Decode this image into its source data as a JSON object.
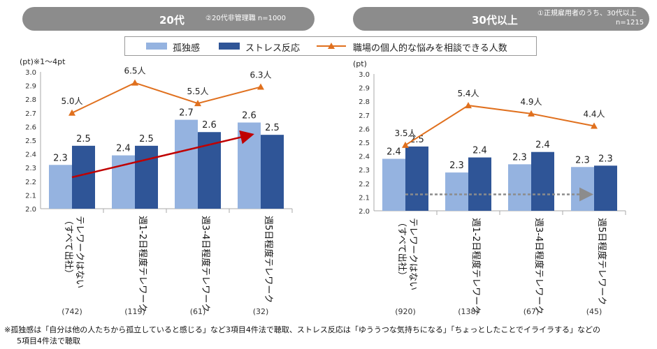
{
  "header_left": {
    "title": "20代",
    "note": "②20代非管理職 n=1000"
  },
  "header_right": {
    "title": "30代以上",
    "note1": "①正規雇用者のうち、30代以上",
    "note2": "n=1215"
  },
  "legend": {
    "item1": "孤独感",
    "item2": "ストレス反応",
    "item3": "職場の個人的な悩みを相談できる人数"
  },
  "colors": {
    "loneliness": "#95b3e0",
    "stress": "#2f5597",
    "line": "#e0701e",
    "trend_red": "#c00000",
    "trend_gray": "#8c8c8c"
  },
  "footnote1": "※孤独感は「自分は他の人たちから孤立していると感じる」など3項目4件法で聴取、ストレス反応は「ゆううつな気持ちになる」「ちょっとしたことでイライラする」などの",
  "footnote2": "5項目4件法で聴取",
  "chart_data": [
    {
      "type": "bar",
      "name": "left-chart",
      "title": "20代",
      "ylabel": "(pt)※1～4pt",
      "ylim": [
        2.0,
        3.0
      ],
      "yticks": [
        "2.0",
        "2.1",
        "2.2",
        "2.3",
        "2.4",
        "2.5",
        "2.6",
        "2.7",
        "2.8",
        "2.9",
        "3.0"
      ],
      "categories": [
        "テレワークはない（すべて出社）",
        "週1-2日程度テレワーク",
        "週3-4日程度テレワーク",
        "週5日程度テレワーク"
      ],
      "counts": [
        "(742)",
        "(119)",
        "(61)",
        "(32)"
      ],
      "series": [
        {
          "name": "孤独感",
          "values": [
            2.32,
            2.39,
            2.65,
            2.63
          ],
          "labels": [
            "2.3",
            "2.4",
            "2.7",
            "2.6"
          ]
        },
        {
          "name": "ストレス反応",
          "values": [
            2.46,
            2.46,
            2.56,
            2.54
          ],
          "labels": [
            "2.5",
            "2.5",
            "2.6",
            "2.5"
          ]
        }
      ],
      "line": {
        "name": "職場の個人的な悩みを相談できる人数",
        "values": [
          5.0,
          6.5,
          5.5,
          6.3
        ],
        "labels": [
          "5.0人",
          "6.5人",
          "5.5人",
          "6.3人"
        ],
        "y_pos": [
          2.7,
          2.92,
          2.77,
          2.89
        ]
      },
      "trend": {
        "from": 2.23,
        "to": 2.54
      }
    },
    {
      "type": "bar",
      "name": "right-chart",
      "title": "30代以上",
      "ylabel": "(pt)",
      "ylim": [
        2.0,
        3.0
      ],
      "yticks": [
        "2.0",
        "2.1",
        "2.2",
        "2.3",
        "2.4",
        "2.5",
        "2.6",
        "2.7",
        "2.8",
        "2.9",
        "3.0"
      ],
      "categories": [
        "テレワークはない（すべて出社）",
        "週1-2日程度テレワーク",
        "週3-4日程度テレワーク",
        "週5日程度テレワーク"
      ],
      "counts": [
        "(920)",
        "(138)",
        "(67)",
        "(45)"
      ],
      "series": [
        {
          "name": "孤独感",
          "values": [
            2.38,
            2.28,
            2.34,
            2.32
          ],
          "labels": [
            "2.4",
            "2.3",
            "2.3",
            "2.3"
          ]
        },
        {
          "name": "ストレス反応",
          "values": [
            2.47,
            2.39,
            2.43,
            2.33
          ],
          "labels": [
            "2.5",
            "2.4",
            "2.4",
            "2.3"
          ]
        }
      ],
      "line": {
        "name": "職場の個人的な悩みを相談できる人数",
        "values": [
          3.5,
          5.4,
          4.9,
          4.4
        ],
        "labels": [
          "3.5人",
          "5.4人",
          "4.9人",
          "4.4人"
        ],
        "y_pos": [
          2.48,
          2.77,
          2.71,
          2.62
        ]
      },
      "trend": {
        "from": 2.12,
        "to": 2.12
      }
    }
  ]
}
